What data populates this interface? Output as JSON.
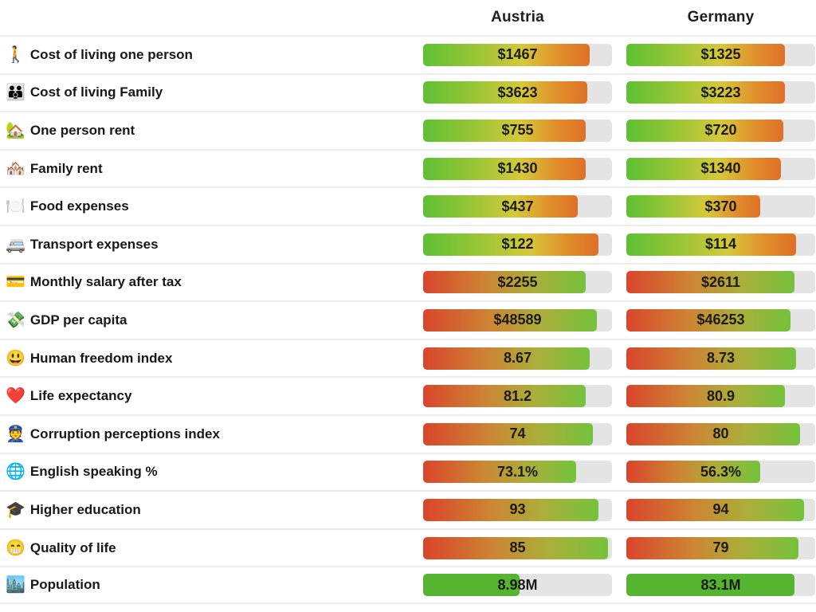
{
  "header": {
    "austria": "Austria",
    "germany": "Germany"
  },
  "colors": {
    "track_gray": "#e4e4e4",
    "separator": "#ececec",
    "cost_gradient": [
      "#5ec034",
      "#d6c839",
      "#df7027"
    ],
    "benefit_gradient": [
      "#d9452c",
      "#cd8434",
      "#74c23c"
    ],
    "plain_green": "#55b430",
    "label_text": "#181818",
    "value_text": "#1c1c1c"
  },
  "rows": [
    {
      "icon": "🚶",
      "icon_name": "person-walking-icon",
      "label": "Cost of living one person",
      "style": "cost",
      "austria": {
        "value": "$1467",
        "fill": 88
      },
      "germany": {
        "value": "$1325",
        "fill": 84
      }
    },
    {
      "icon": "👪",
      "icon_name": "family-icon",
      "label": "Cost of living Family",
      "style": "cost",
      "austria": {
        "value": "$3623",
        "fill": 87
      },
      "germany": {
        "value": "$3223",
        "fill": 84
      }
    },
    {
      "icon": "🏡",
      "icon_name": "house-icon",
      "label": "One person rent",
      "style": "cost",
      "austria": {
        "value": "$755",
        "fill": 86
      },
      "germany": {
        "value": "$720",
        "fill": 83
      }
    },
    {
      "icon": "🏘️",
      "icon_name": "houses-icon",
      "label": "Family rent",
      "style": "cost",
      "austria": {
        "value": "$1430",
        "fill": 86
      },
      "germany": {
        "value": "$1340",
        "fill": 82
      }
    },
    {
      "icon": "🍽️",
      "icon_name": "fork-knife-plate-icon",
      "label": "Food expenses",
      "style": "cost",
      "austria": {
        "value": "$437",
        "fill": 82
      },
      "germany": {
        "value": "$370",
        "fill": 71
      }
    },
    {
      "icon": "🚐",
      "icon_name": "minibus-icon",
      "label": "Transport expenses",
      "style": "cost",
      "austria": {
        "value": "$122",
        "fill": 93
      },
      "germany": {
        "value": "$114",
        "fill": 90
      }
    },
    {
      "icon": "💳",
      "icon_name": "credit-card-icon",
      "label": "Monthly salary after tax",
      "style": "benefit",
      "austria": {
        "value": "$2255",
        "fill": 86
      },
      "germany": {
        "value": "$2611",
        "fill": 89
      }
    },
    {
      "icon": "💸",
      "icon_name": "money-with-wings-icon",
      "label": "GDP per capita",
      "style": "benefit",
      "austria": {
        "value": "$48589",
        "fill": 92
      },
      "germany": {
        "value": "$46253",
        "fill": 87
      }
    },
    {
      "icon": "😃",
      "icon_name": "grinning-face-icon",
      "label": "Human freedom index",
      "style": "benefit",
      "austria": {
        "value": "8.67",
        "fill": 88
      },
      "germany": {
        "value": "8.73",
        "fill": 90
      }
    },
    {
      "icon": "❤️",
      "icon_name": "red-heart-icon",
      "label": "Life expectancy",
      "style": "benefit",
      "austria": {
        "value": "81.2",
        "fill": 86
      },
      "germany": {
        "value": "80.9",
        "fill": 84
      }
    },
    {
      "icon": "👮",
      "icon_name": "police-officer-icon",
      "label": "Corruption perceptions index",
      "style": "benefit",
      "austria": {
        "value": "74",
        "fill": 90
      },
      "germany": {
        "value": "80",
        "fill": 92
      }
    },
    {
      "icon": "🌐",
      "icon_name": "globe-icon",
      "label": "English speaking %",
      "style": "benefit",
      "austria": {
        "value": "73.1%",
        "fill": 81
      },
      "germany": {
        "value": "56.3%",
        "fill": 71
      }
    },
    {
      "icon": "🎓",
      "icon_name": "graduation-cap-icon",
      "label": "Higher education",
      "style": "benefit",
      "austria": {
        "value": "93",
        "fill": 93
      },
      "germany": {
        "value": "94",
        "fill": 94
      }
    },
    {
      "icon": "😁",
      "icon_name": "smiling-face-icon",
      "label": "Quality of life",
      "style": "benefit",
      "austria": {
        "value": "85",
        "fill": 98
      },
      "germany": {
        "value": "79",
        "fill": 91
      }
    },
    {
      "icon": "🏙️",
      "icon_name": "cityscape-icon",
      "label": "Population",
      "style": "plain",
      "austria": {
        "value": "8.98M",
        "fill": 51
      },
      "germany": {
        "value": "83.1M",
        "fill": 89
      }
    }
  ],
  "chart_data": {
    "type": "table",
    "title": "Austria vs Germany country comparison",
    "categories": [
      "Cost of living one person",
      "Cost of living Family",
      "One person rent",
      "Family rent",
      "Food expenses",
      "Transport expenses",
      "Monthly salary after tax",
      "GDP per capita",
      "Human freedom index",
      "Life expectancy",
      "Corruption perceptions index",
      "English speaking %",
      "Higher education",
      "Quality of life",
      "Population"
    ],
    "series": [
      {
        "name": "Austria",
        "values": [
          1467,
          3623,
          755,
          1430,
          437,
          122,
          2255,
          48589,
          8.67,
          81.2,
          74,
          73.1,
          93,
          85,
          "8.98M"
        ]
      },
      {
        "name": "Germany",
        "values": [
          1325,
          3223,
          720,
          1340,
          370,
          114,
          2611,
          46253,
          8.73,
          80.9,
          80,
          56.3,
          94,
          79,
          "83.1M"
        ]
      }
    ],
    "legend_position": "top",
    "notes": "Each cell shows value inside a horizontal gauge bar; cost rows shade green-to-orange, benefit rows shade red-to-green, population is solid green on gray track"
  }
}
